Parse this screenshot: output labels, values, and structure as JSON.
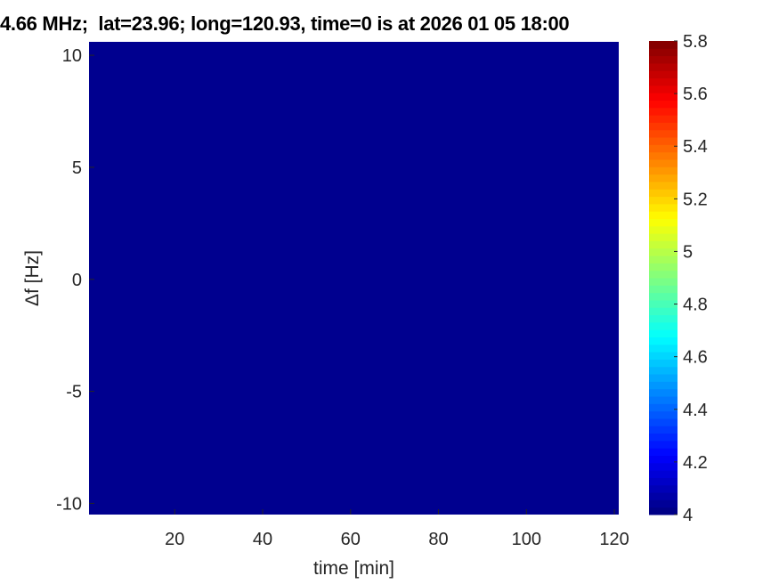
{
  "chart_data": {
    "type": "heatmap",
    "title": "4.66 MHz;  lat=23.96; long=120.93, time=0 is at 2026 01 05 18:00",
    "xlabel": "time [min]",
    "ylabel": "Δf [Hz]",
    "xlim": [
      0.5,
      121
    ],
    "ylim": [
      -10.5,
      10.6
    ],
    "xticks": [
      20,
      40,
      60,
      80,
      100,
      120
    ],
    "yticks": [
      -10,
      -5,
      0,
      5,
      10
    ],
    "values_description_uniform": 4,
    "colormap": "jet",
    "colorbar": {
      "limits": [
        4,
        5.8
      ],
      "ticks": [
        4,
        4.2,
        4.4,
        4.6,
        4.8,
        5,
        5.2,
        5.4,
        5.6,
        5.8
      ]
    },
    "fill_color": "#00008F",
    "grid": false
  }
}
